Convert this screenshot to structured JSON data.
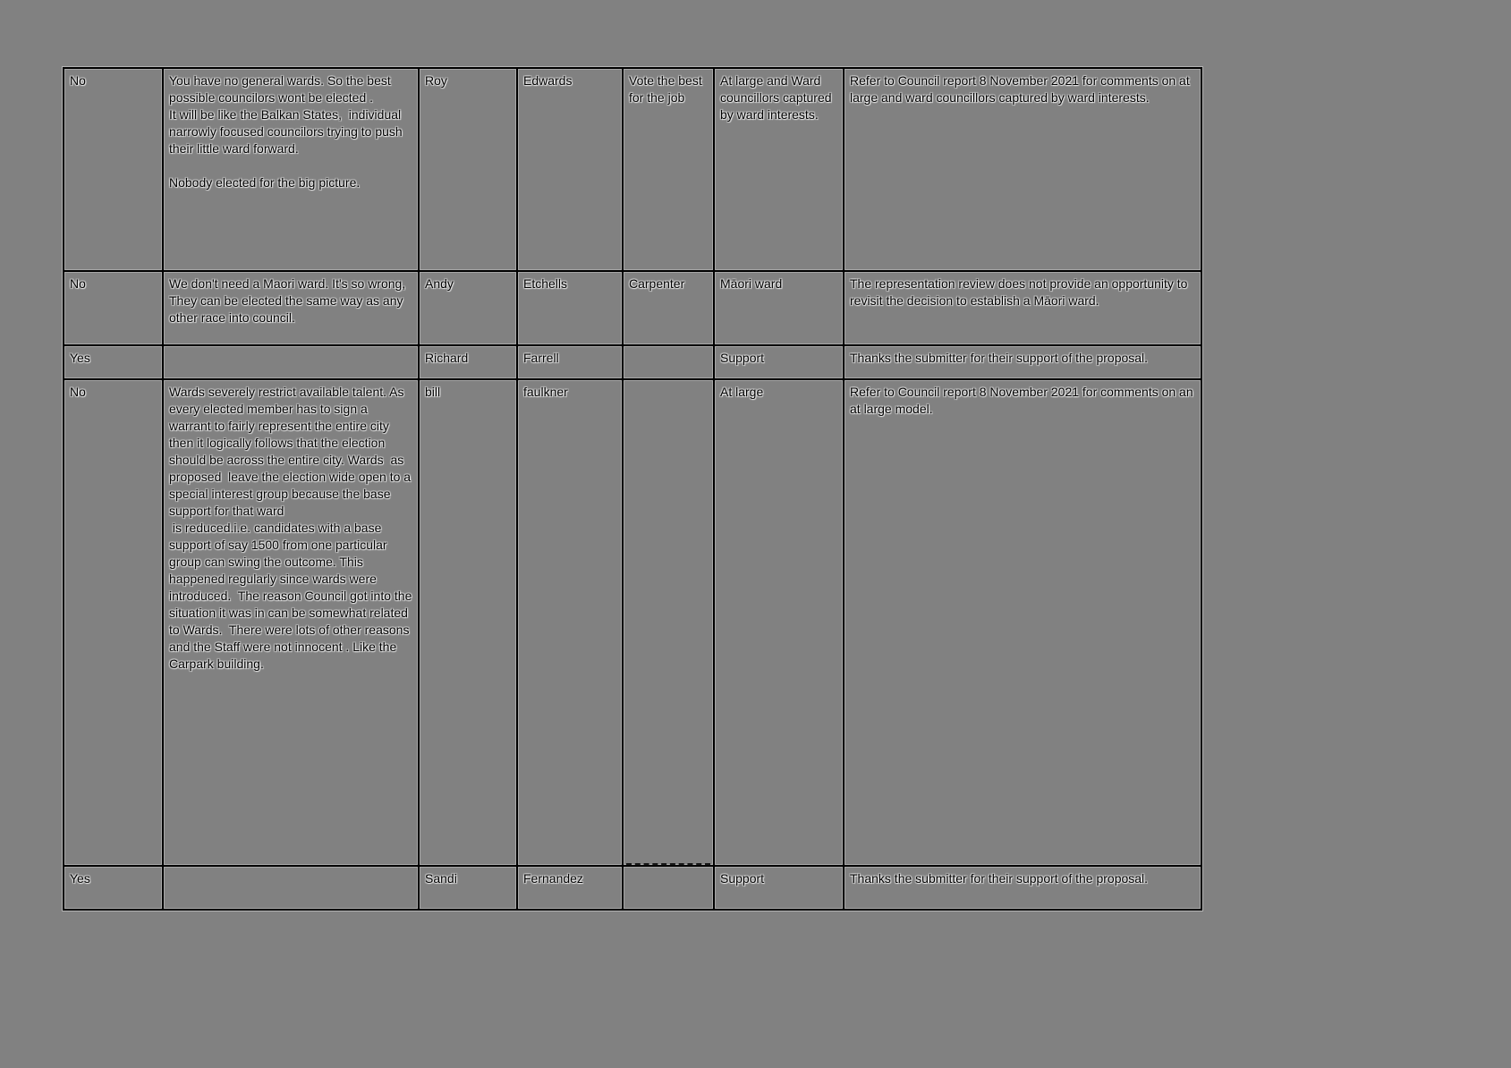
{
  "page": {
    "background_color": "#818181"
  },
  "table": {
    "grid_color": "#000000",
    "text_color": "#000000",
    "rows": [
      {
        "cells": [
          "No",
          "You have no general wards. So the best possible councilors wont be elected .\nIt will be like the Balkan States,  individual narrowly focused councilors trying to push their little ward forward.\n\nNobody elected for the big picture.",
          "Roy",
          "Edwards",
          "Vote the best for the job",
          "At large and Ward councillors captured by ward interests.",
          "Refer to Council report 8 November 2021 for comments on at large and ward councillors captured by ward interests."
        ]
      },
      {
        "cells": [
          "No",
          "We don't need a Maori ward. It's so wrong, They can be elected the same way as any other race into council.",
          "Andy",
          "Etchells",
          "Carpenter",
          "Māori ward",
          "The representation review does not provide an opportunity to revisit the decision to establish a Māori ward."
        ]
      },
      {
        "cells": [
          "Yes",
          "",
          "Richard",
          "Farrell",
          "",
          "Support",
          "Thanks the submitter for their support of the proposal."
        ]
      },
      {
        "cells": [
          "No",
          "Wards severely restrict available talent. As every elected member has to sign a warrant to fairly represent the entire city then it logically follows that the election should be across the entire city. Wards  as proposed  leave the election wide open to a special interest group because the base support for that ward\n is reduced.i.e. candidates with a base support of say 1500 from one particular group can swing the outcome. This happened regularly since wards were introduced.  The reason Council got into the situation it was in can be somewhat related to Wards.  There were lots of other reasons and the Staff were not innocent . Like the Carpark building.",
          "bill",
          "faulkner",
          "",
          "At large",
          "Refer to Council report 8 November 2021 for comments on an at large model."
        ]
      },
      {
        "cells": [
          "Yes",
          "",
          "Sandi",
          "Fernandez",
          "",
          "Support",
          "Thanks the submitter for their support of the proposal."
        ]
      }
    ]
  }
}
